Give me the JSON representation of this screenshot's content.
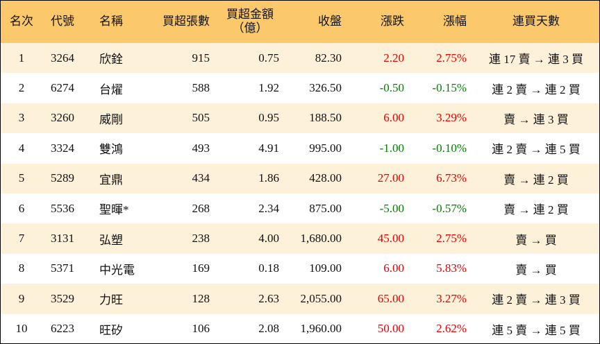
{
  "table": {
    "header": [
      "名次",
      "代號",
      "名稱",
      "買超張數",
      [
        "買超金額",
        "（億）"
      ],
      "收盤",
      "漲跌",
      "漲幅",
      "連買天數"
    ],
    "rows": [
      [
        "1",
        "3264",
        "欣銓",
        "915",
        "0.75",
        "82.30",
        "2.20",
        "2.75%",
        "連 17 賣 → 連 3 買"
      ],
      [
        "2",
        "6274",
        "台燿",
        "588",
        "1.92",
        "326.50",
        "-0.50",
        "-0.15%",
        "連 2 賣 → 連 2 買"
      ],
      [
        "3",
        "3260",
        "威剛",
        "505",
        "0.95",
        "188.50",
        "6.00",
        "3.29%",
        "賣 → 連 3 買"
      ],
      [
        "4",
        "3324",
        "雙鴻",
        "493",
        "4.91",
        "995.00",
        "-1.00",
        "-0.10%",
        "連 2 賣 → 連 5 買"
      ],
      [
        "5",
        "5289",
        "宜鼎",
        "434",
        "1.86",
        "428.00",
        "27.00",
        "6.73%",
        "賣 → 連 2 買"
      ],
      [
        "6",
        "5536",
        "聖暉*",
        "268",
        "2.34",
        "875.00",
        "-5.00",
        "-0.57%",
        "賣 → 連 2 買"
      ],
      [
        "7",
        "3131",
        "弘塑",
        "238",
        "4.00",
        "1,680.00",
        "45.00",
        "2.75%",
        "賣 → 買"
      ],
      [
        "8",
        "5371",
        "中光電",
        "169",
        "0.18",
        "109.00",
        "6.00",
        "5.83%",
        "賣 → 買"
      ],
      [
        "9",
        "3529",
        "力旺",
        "128",
        "2.63",
        "2,055.00",
        "65.00",
        "3.27%",
        "連 2 賣 → 連 3 買"
      ],
      [
        "10",
        "6223",
        "旺矽",
        "106",
        "2.08",
        "1,960.00",
        "50.00",
        "2.62%",
        "連 5 賣 → 連 5 買"
      ]
    ],
    "up_color": "#e60000",
    "down_color": "#008000"
  }
}
